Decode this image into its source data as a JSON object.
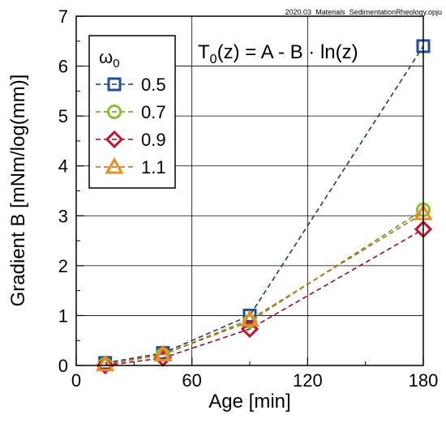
{
  "file_label": "2020.03_Materials_SedimentationRheology.opju",
  "equation": {
    "lhs_main": "T",
    "lhs_sub": "0",
    "lhs_rest": "(z) = A - B · ln(z)"
  },
  "legend": {
    "title_main": "ω",
    "title_sub": "0"
  },
  "chart_data": {
    "type": "line",
    "title": "",
    "xlabel": "Age [min]",
    "ylabel": "Gradient B [mNm/log(mm)]",
    "xlim": [
      0,
      180
    ],
    "ylim": [
      0,
      7
    ],
    "x_ticks": [
      0,
      60,
      120,
      180
    ],
    "y_ticks": [
      0,
      1,
      2,
      3,
      4,
      5,
      6,
      7
    ],
    "grid": true,
    "legend_position": "top-left",
    "series": [
      {
        "name": "0.5",
        "marker": "square",
        "color": "#1f4e9c",
        "x": [
          15,
          45,
          90,
          180
        ],
        "y": [
          0.05,
          0.25,
          1.0,
          6.4
        ]
      },
      {
        "name": "0.7",
        "marker": "circle",
        "color": "#8cbf2e",
        "x": [
          15,
          45,
          90,
          180
        ],
        "y": [
          0.02,
          0.22,
          0.88,
          3.12
        ]
      },
      {
        "name": "0.9",
        "marker": "diamond",
        "color": "#c8102e",
        "x": [
          15,
          45,
          90,
          180
        ],
        "y": [
          0.0,
          0.15,
          0.73,
          2.73
        ]
      },
      {
        "name": "1.1",
        "marker": "triangle",
        "color": "#f08c1e",
        "x": [
          15,
          45,
          90,
          180
        ],
        "y": [
          0.02,
          0.22,
          0.92,
          3.05
        ]
      }
    ]
  }
}
